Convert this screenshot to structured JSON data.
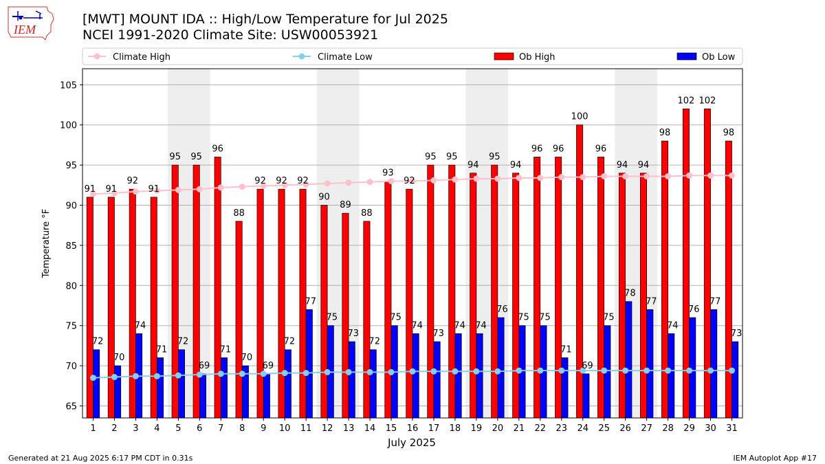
{
  "header": {
    "title_line1": "[MWT] MOUNT IDA :: High/Low Temperature for Jul 2025",
    "title_line2": "NCEI 1991-2020 Climate Site: USW00053921"
  },
  "logo": {
    "text": "IEM"
  },
  "footer": {
    "left": "Generated at 21 Aug 2025 6:17 PM CDT in 0.31s",
    "right": "IEM Autoplot App #17"
  },
  "colors": {
    "ob_high": "#ff0000",
    "ob_low": "#0000ff",
    "climate_high": "#ffc0cb",
    "climate_low": "#87ceeb",
    "weekend_shade": "#eeeeee",
    "grid": "#b0b0b0"
  },
  "chart_data": {
    "type": "bar",
    "xlabel": "July 2025",
    "ylabel": "Temperature °F",
    "ylim": [
      63.5,
      107
    ],
    "yticks": [
      65,
      70,
      75,
      80,
      85,
      90,
      95,
      100,
      105
    ],
    "grid": "horizontal",
    "legend_position": "top",
    "categories": [
      "1",
      "2",
      "3",
      "4",
      "5",
      "6",
      "7",
      "8",
      "9",
      "10",
      "11",
      "12",
      "13",
      "14",
      "15",
      "16",
      "17",
      "18",
      "19",
      "20",
      "21",
      "22",
      "23",
      "24",
      "25",
      "26",
      "27",
      "28",
      "29",
      "30",
      "31"
    ],
    "weekend_days": [
      [
        5,
        6
      ],
      [
        12,
        13
      ],
      [
        19,
        20
      ],
      [
        26,
        27
      ]
    ],
    "series": [
      {
        "name": "Ob High",
        "kind": "bar",
        "color": "#ff0000",
        "values": [
          91,
          91,
          92,
          91,
          95,
          95,
          96,
          88,
          92,
          92,
          92,
          90,
          89,
          88,
          93,
          92,
          95,
          95,
          94,
          95,
          94,
          96,
          96,
          100,
          96,
          94,
          94,
          98,
          102,
          102,
          98
        ]
      },
      {
        "name": "Ob Low",
        "kind": "bar",
        "color": "#0000ff",
        "values": [
          72,
          70,
          74,
          71,
          72,
          69,
          71,
          70,
          69,
          72,
          77,
          75,
          73,
          72,
          75,
          74,
          73,
          74,
          74,
          76,
          75,
          75,
          71,
          69,
          75,
          78,
          77,
          74,
          76,
          77,
          73
        ]
      },
      {
        "name": "Climate High",
        "kind": "line",
        "color": "#ffc0cb",
        "values": [
          91.4,
          91.5,
          91.7,
          91.8,
          91.9,
          92.0,
          92.2,
          92.3,
          92.4,
          92.5,
          92.6,
          92.7,
          92.8,
          92.9,
          93.0,
          93.0,
          93.1,
          93.2,
          93.3,
          93.3,
          93.4,
          93.4,
          93.5,
          93.5,
          93.6,
          93.6,
          93.6,
          93.6,
          93.7,
          93.7,
          93.7
        ]
      },
      {
        "name": "Climate Low",
        "kind": "line",
        "color": "#87ceeb",
        "values": [
          68.5,
          68.6,
          68.7,
          68.7,
          68.8,
          68.9,
          69.0,
          69.0,
          69.0,
          69.1,
          69.1,
          69.2,
          69.2,
          69.2,
          69.2,
          69.3,
          69.3,
          69.3,
          69.3,
          69.3,
          69.4,
          69.4,
          69.4,
          69.4,
          69.4,
          69.4,
          69.4,
          69.4,
          69.4,
          69.4,
          69.4
        ]
      }
    ]
  }
}
